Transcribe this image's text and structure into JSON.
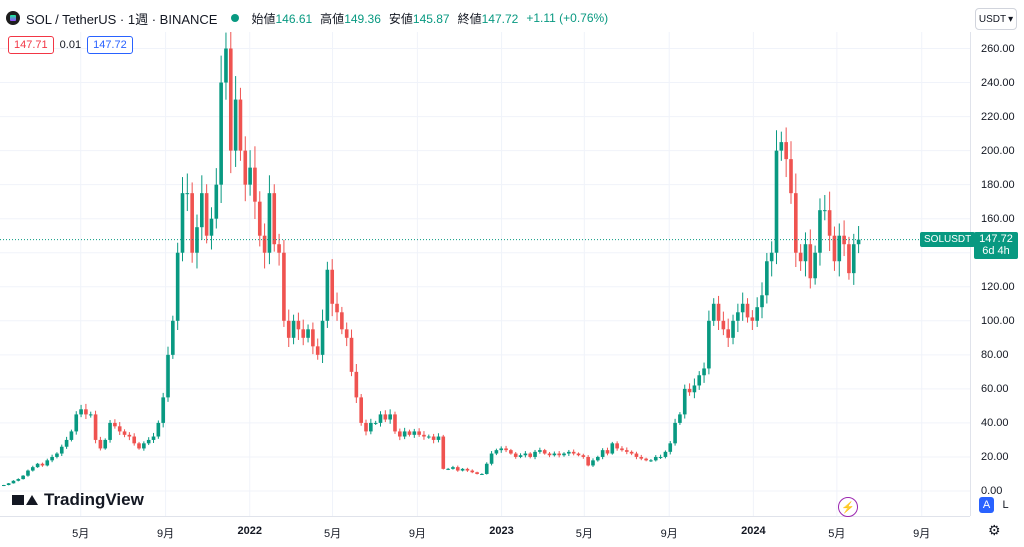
{
  "header": {
    "symbol": "SOL / TetherUS · 1週 · BINANCE",
    "ohlc": [
      {
        "label": "始値",
        "value": "146.61"
      },
      {
        "label": "高値",
        "value": "149.36"
      },
      {
        "label": "安値",
        "value": "145.87"
      },
      {
        "label": "終値",
        "value": "147.72"
      }
    ],
    "change": "+1.11 (+0.76%)"
  },
  "order": {
    "sell": "147.71",
    "spread": "0.01",
    "buy": "147.72"
  },
  "currency_button": "USDT",
  "price_tag": {
    "symbol": "SOLUSDT",
    "price": "147.72",
    "countdown": "6d 4h"
  },
  "branding": "TradingView",
  "scale_buttons": {
    "auto": "A",
    "log": "L"
  },
  "colors": {
    "up": "#089981",
    "down": "#ef5350",
    "accent": "#2962ff"
  },
  "chart_data": {
    "type": "candlestick",
    "interval": "1 week",
    "ylim": [
      -10,
      265
    ],
    "y_ticks": [
      "260.00",
      "240.00",
      "220.00",
      "200.00",
      "180.00",
      "160.00",
      "140.00",
      "120.00",
      "100.00",
      "80.00",
      "60.00",
      "40.00",
      "20.00",
      "0.00"
    ],
    "x_ticks": [
      {
        "label": "5月",
        "date": "2021-05-01"
      },
      {
        "label": "9月",
        "date": "2021-09-01"
      },
      {
        "label": "2022",
        "date": "2022-01-01"
      },
      {
        "label": "5月",
        "date": "2022-05-01"
      },
      {
        "label": "9月",
        "date": "2022-09-01"
      },
      {
        "label": "2023",
        "date": "2023-01-01"
      },
      {
        "label": "5月",
        "date": "2023-05-01"
      },
      {
        "label": "9月",
        "date": "2023-09-01"
      },
      {
        "label": "2024",
        "date": "2024-01-01"
      },
      {
        "label": "5月",
        "date": "2024-05-01"
      },
      {
        "label": "9月",
        "date": "2024-09-01"
      }
    ],
    "x_start": "2021-01-04",
    "x_end": "2024-11-10",
    "last_close": 147.72,
    "closes": [
      3.5,
      4.5,
      6,
      7,
      9,
      12,
      14,
      16,
      15,
      18,
      20,
      22,
      26,
      30,
      35,
      45,
      48,
      45,
      45,
      30,
      25,
      30,
      40,
      38,
      35,
      33,
      32,
      28,
      25,
      28,
      30,
      32,
      40,
      55,
      80,
      100,
      140,
      175,
      175,
      140,
      155,
      175,
      150,
      160,
      180,
      240,
      260,
      200,
      230,
      200,
      180,
      190,
      170,
      150,
      140,
      175,
      145,
      140,
      100,
      90,
      100,
      95,
      90,
      95,
      85,
      80,
      100,
      130,
      110,
      105,
      95,
      90,
      70,
      55,
      40,
      35,
      40,
      40,
      45,
      42,
      45,
      35,
      32,
      35,
      33,
      35,
      33,
      32,
      32,
      30,
      32,
      13,
      13,
      14,
      12,
      13,
      12,
      11,
      10,
      10,
      16,
      22,
      24,
      25,
      24,
      22,
      20,
      21,
      22,
      20,
      23,
      24,
      22,
      21,
      22,
      21,
      22,
      23,
      22,
      21,
      20,
      15,
      18,
      20,
      24,
      22,
      28,
      25,
      24,
      23,
      22,
      20,
      19,
      18,
      18,
      20,
      20,
      23,
      28,
      40,
      45,
      60,
      58,
      62,
      68,
      72,
      100,
      110,
      100,
      95,
      90,
      100,
      105,
      110,
      102,
      100,
      108,
      115,
      135,
      140,
      200,
      205,
      195,
      175,
      140,
      135,
      145,
      125,
      140,
      165,
      165,
      150,
      135,
      150,
      145,
      128,
      145,
      147.72
    ]
  }
}
